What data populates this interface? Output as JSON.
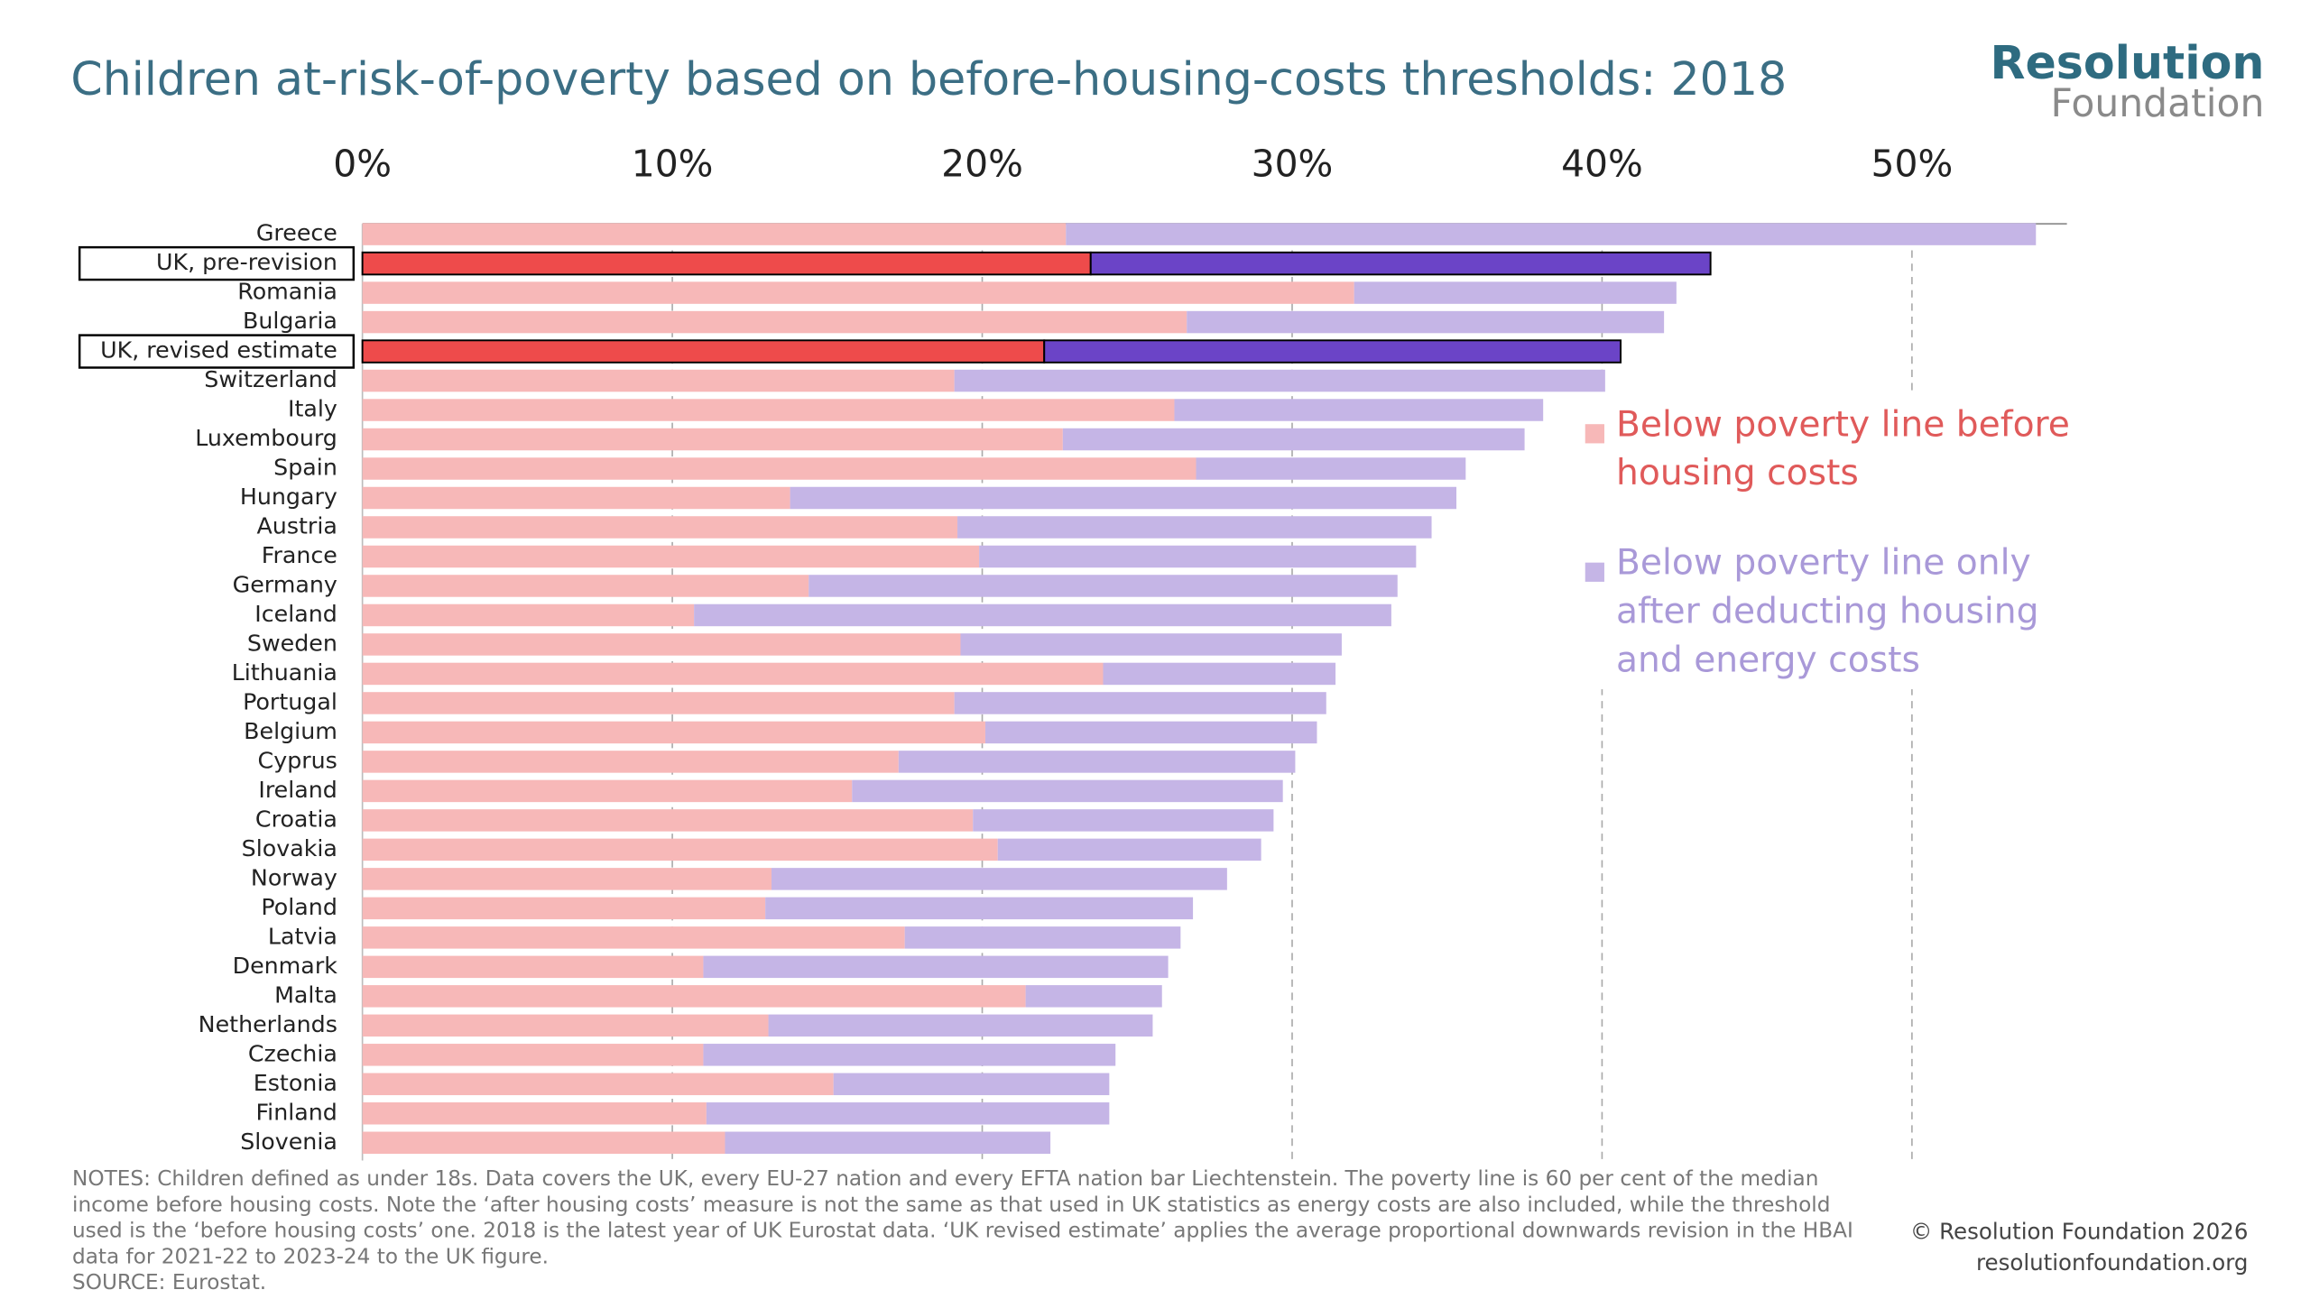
{
  "chart_data": {
    "type": "stacked-barh",
    "title": "Children at-risk-of-poverty based on before-housing-costs thresholds: 2018",
    "logo": [
      "Resolution",
      "Foundation"
    ],
    "categories": [
      "Greece",
      "UK, pre-revision",
      "Romania",
      "Bulgaria",
      "UK, revised estimate",
      "Switzerland",
      "Italy",
      "Luxembourg",
      "Spain",
      "Hungary",
      "Austria",
      "France",
      "Germany",
      "Iceland",
      "Sweden",
      "Lithuania",
      "Portugal",
      "Belgium",
      "Cyprus",
      "Ireland",
      "Croatia",
      "Slovakia",
      "Norway",
      "Poland",
      "Latvia",
      "Denmark",
      "Malta",
      "Netherlands",
      "Czechia",
      "Estonia",
      "Finland",
      "Slovenia"
    ],
    "series": [
      {
        "name": "Below poverty line before housing costs",
        "color": "#f7b8b8",
        "legend_color": "#e05a5a",
        "values": [
          22.7,
          23.5,
          32.0,
          26.6,
          22.0,
          19.1,
          26.2,
          22.6,
          26.9,
          13.8,
          19.2,
          19.9,
          14.4,
          10.7,
          19.3,
          23.9,
          19.1,
          20.1,
          17.3,
          15.8,
          19.7,
          20.5,
          13.2,
          13.0,
          17.5,
          11.0,
          21.4,
          13.1,
          11.0,
          15.2,
          11.1,
          11.7
        ]
      },
      {
        "name": "Below poverty line only after deducting housing and energy costs",
        "color": "#c5b5e6",
        "legend_color": "#a999d8",
        "values": [
          31.3,
          20.0,
          10.4,
          15.4,
          18.6,
          21.0,
          11.9,
          14.9,
          8.7,
          21.5,
          15.3,
          14.1,
          19.0,
          22.5,
          12.3,
          7.5,
          12.0,
          10.7,
          12.8,
          13.9,
          9.7,
          8.5,
          14.7,
          13.8,
          8.9,
          15.0,
          4.4,
          12.4,
          13.3,
          8.9,
          13.0,
          10.5
        ]
      }
    ],
    "highlight": {
      "indices": [
        1,
        4
      ],
      "colors": [
        "#ee4b4b",
        "#6b44c7"
      ]
    },
    "xlim": [
      0,
      55
    ],
    "xticks": [
      {
        "value": 0,
        "label": "0%"
      },
      {
        "value": 10,
        "label": "10%"
      },
      {
        "value": 20,
        "label": "20%"
      },
      {
        "value": 30,
        "label": "30%"
      },
      {
        "value": 40,
        "label": "40%"
      },
      {
        "value": 50,
        "label": "50%"
      }
    ],
    "grid": true,
    "notes": [
      "NOTES: Children defined as under 18s. Data covers the UK, every EU-27 nation and every EFTA nation bar Liechtenstein. The poverty line is 60 per cent of the median",
      "income before housing costs. Note the ‘after housing costs’ measure is not the same as that used in UK statistics as energy costs are also included, while the threshold",
      "used is the ‘before housing costs’ one. 2018 is the latest year of UK Eurostat data. ‘UK revised estimate’ applies the average proportional downwards revision in the HBAI",
      "data for 2021-22 to 2023-24 to the UK figure.",
      "SOURCE: Eurostat."
    ],
    "copyright": "© Resolution Foundation 2026",
    "website": "resolutionfoundation.org"
  }
}
